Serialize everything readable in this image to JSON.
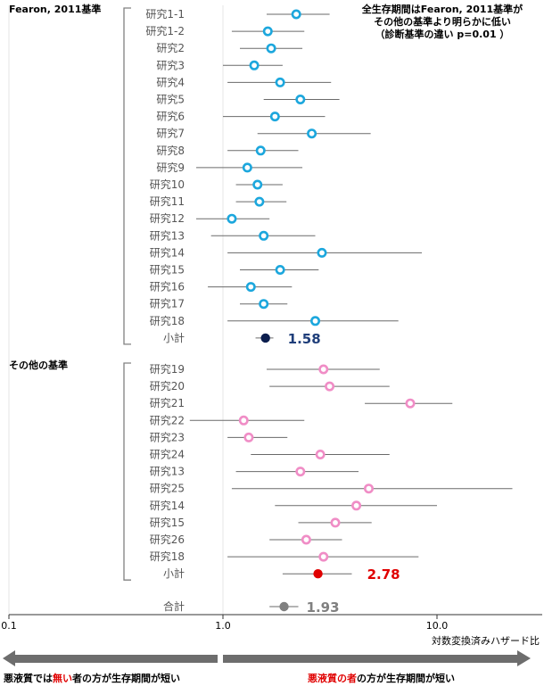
{
  "chart_data": {
    "type": "forest",
    "x_scale": "log",
    "xlim": [
      0.1,
      30
    ],
    "xticks": [
      {
        "value": 0.1,
        "label": "0.1"
      },
      {
        "value": 1.0,
        "label": "1.0"
      },
      {
        "value": 10.0,
        "label": "10.0"
      }
    ],
    "xlabel": "対数変換済みハザード比",
    "note_lines": [
      "全生存期間はFearon, 2011基準が",
      "その他の基準より明らかに低い",
      "（診断基準の違い p=0.01 ）"
    ],
    "groups": [
      {
        "name": "Fearon, 2011基準",
        "color": "#1ca7dd",
        "studies": [
          {
            "label": "研究1-1",
            "hr": 2.2,
            "lo": 1.6,
            "hi": 3.15
          },
          {
            "label": "研究1-2",
            "hr": 1.62,
            "lo": 1.1,
            "hi": 2.4
          },
          {
            "label": "研究2",
            "hr": 1.68,
            "lo": 1.2,
            "hi": 2.35
          },
          {
            "label": "研究3",
            "hr": 1.4,
            "lo": 1.0,
            "hi": 1.9
          },
          {
            "label": "研究4",
            "hr": 1.85,
            "lo": 1.05,
            "hi": 3.2
          },
          {
            "label": "研究5",
            "hr": 2.3,
            "lo": 1.55,
            "hi": 3.5
          },
          {
            "label": "研究6",
            "hr": 1.75,
            "lo": 1.0,
            "hi": 3.0
          },
          {
            "label": "研究7",
            "hr": 2.6,
            "lo": 1.45,
            "hi": 4.9
          },
          {
            "label": "研究8",
            "hr": 1.5,
            "lo": 1.05,
            "hi": 2.25
          },
          {
            "label": "研究9",
            "hr": 1.3,
            "lo": 0.75,
            "hi": 2.35
          },
          {
            "label": "研究10",
            "hr": 1.45,
            "lo": 1.15,
            "hi": 1.9
          },
          {
            "label": "研究11",
            "hr": 1.48,
            "lo": 1.15,
            "hi": 1.98
          },
          {
            "label": "研究12",
            "hr": 1.1,
            "lo": 0.75,
            "hi": 1.65
          },
          {
            "label": "研究13",
            "hr": 1.55,
            "lo": 0.88,
            "hi": 2.7
          },
          {
            "label": "研究14",
            "hr": 2.9,
            "lo": 1.05,
            "hi": 8.5
          },
          {
            "label": "研究15",
            "hr": 1.85,
            "lo": 1.2,
            "hi": 2.8
          },
          {
            "label": "研究16",
            "hr": 1.35,
            "lo": 0.85,
            "hi": 2.1
          },
          {
            "label": "研究17",
            "hr": 1.55,
            "lo": 1.2,
            "hi": 2.0
          },
          {
            "label": "研究18",
            "hr": 2.7,
            "lo": 1.05,
            "hi": 6.6
          }
        ],
        "subtotal": {
          "label": "小計",
          "hr": 1.58,
          "value_text": "1.58",
          "color": "#0c1e4e",
          "text_color": "#1f3e7a"
        }
      },
      {
        "name": "その他の基準",
        "color": "#f08dc6",
        "studies": [
          {
            "label": "研究19",
            "hr": 2.95,
            "lo": 1.6,
            "hi": 5.4
          },
          {
            "label": "研究20",
            "hr": 3.15,
            "lo": 1.65,
            "hi": 6.0
          },
          {
            "label": "研究21",
            "hr": 7.5,
            "lo": 4.6,
            "hi": 11.8
          },
          {
            "label": "研究22",
            "hr": 1.25,
            "lo": 0.7,
            "hi": 2.4
          },
          {
            "label": "研究23",
            "hr": 1.32,
            "lo": 1.05,
            "hi": 2.0
          },
          {
            "label": "研究24",
            "hr": 2.85,
            "lo": 1.35,
            "hi": 6.0
          },
          {
            "label": "研究13",
            "hr": 2.3,
            "lo": 1.15,
            "hi": 4.3
          },
          {
            "label": "研究25",
            "hr": 4.8,
            "lo": 1.1,
            "hi": 22.5
          },
          {
            "label": "研究14",
            "hr": 4.2,
            "lo": 1.75,
            "hi": 10.0
          },
          {
            "label": "研究15",
            "hr": 3.35,
            "lo": 2.25,
            "hi": 4.95
          },
          {
            "label": "研究26",
            "hr": 2.45,
            "lo": 1.65,
            "hi": 3.6
          },
          {
            "label": "研究18",
            "hr": 2.95,
            "lo": 1.05,
            "hi": 8.2
          }
        ],
        "subtotal": {
          "label": "小計",
          "hr": 2.78,
          "value_text": "2.78",
          "color": "#e00000",
          "text_color": "#e00000"
        }
      }
    ],
    "total": {
      "label": "合計",
      "hr": 1.93,
      "value_text": "1.93",
      "color": "#808080",
      "text_color": "#808080"
    },
    "arrows": {
      "left_parts": [
        {
          "text": "悪液質では",
          "red": false
        },
        {
          "text": "無い",
          "red": true
        },
        {
          "text": "者の方が生存期間が短い",
          "red": false
        }
      ],
      "right_parts": [
        {
          "text": "悪液質の者",
          "red": true
        },
        {
          "text": "の方が生存期間が短い",
          "red": false
        }
      ],
      "color": "#6d6d6d"
    }
  }
}
